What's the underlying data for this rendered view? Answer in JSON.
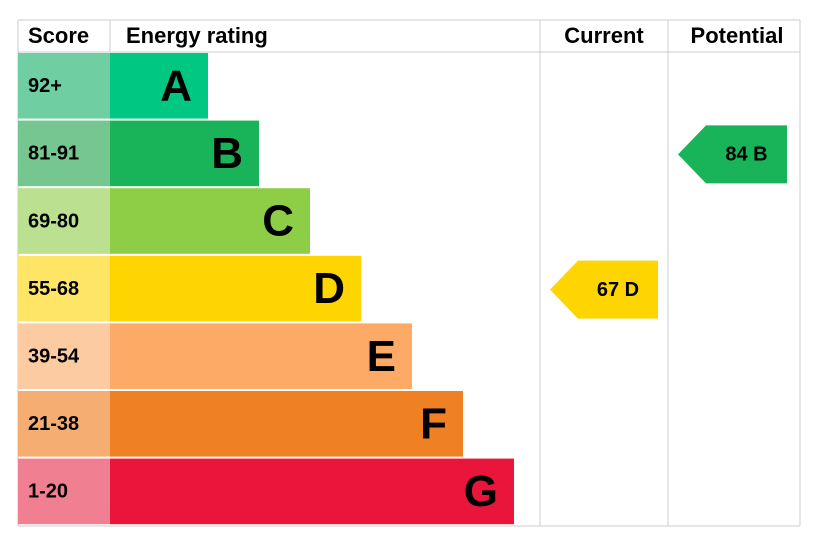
{
  "header": {
    "score": "Score",
    "rating": "Energy rating",
    "current": "Current",
    "potential": "Potential"
  },
  "rows": [
    {
      "score": "92+",
      "letter": "A",
      "color": "#00c781",
      "score_color": "#6fcfa3"
    },
    {
      "score": "81-91",
      "letter": "B",
      "color": "#19b459",
      "score_color": "#75c68f"
    },
    {
      "score": "69-80",
      "letter": "C",
      "color": "#8dce46",
      "score_color": "#bbe08f"
    },
    {
      "score": "55-68",
      "letter": "D",
      "color": "#ffd500",
      "score_color": "#ffe566"
    },
    {
      "score": "39-54",
      "letter": "E",
      "color": "#fcaa65",
      "score_color": "#fccba2"
    },
    {
      "score": "21-38",
      "letter": "F",
      "color": "#ef8023",
      "score_color": "#f5ad72"
    },
    {
      "score": "1-20",
      "letter": "G",
      "color": "#e9153b",
      "score_color": "#f07f92"
    }
  ],
  "current": {
    "label": "67 D",
    "color": "#ffd500"
  },
  "potential": {
    "label": "84 B",
    "color": "#19b459"
  }
}
